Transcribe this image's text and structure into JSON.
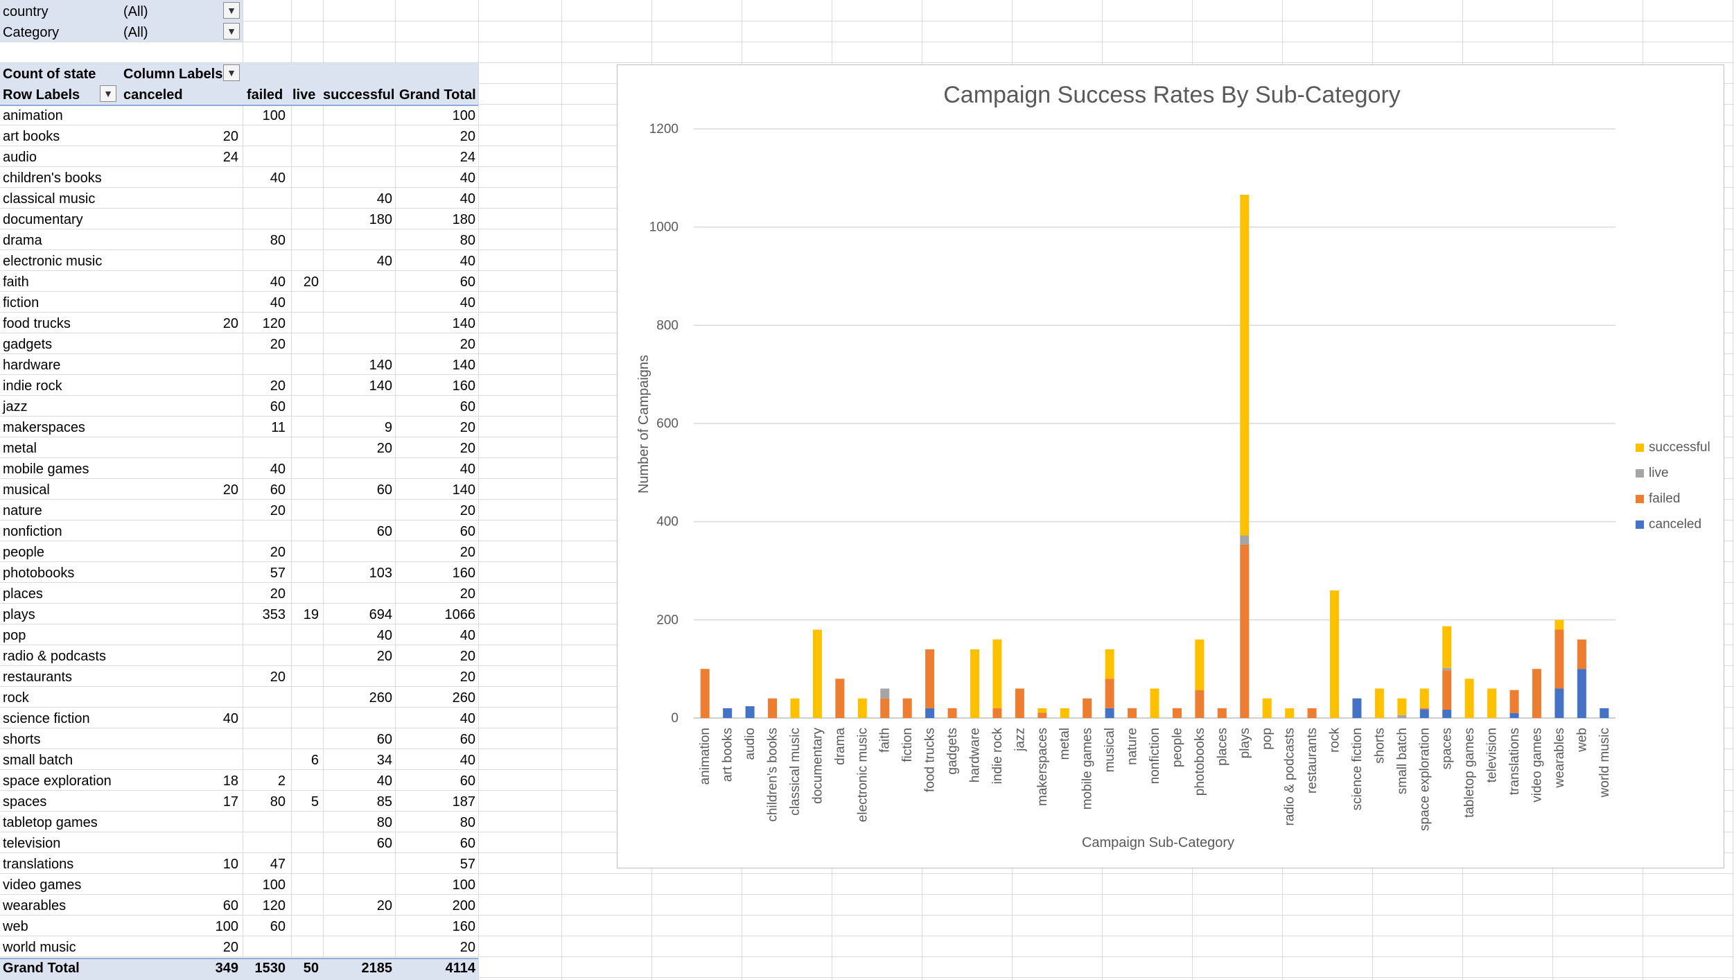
{
  "filters": [
    {
      "field": "country",
      "value": "(All)"
    },
    {
      "field": "Category",
      "value": "(All)"
    }
  ],
  "pivot": {
    "corner_label": "Count of state",
    "column_labels": "Column Labels",
    "row_labels": "Row Labels",
    "columns": [
      "canceled",
      "failed",
      "live",
      "successful",
      "Grand Total"
    ],
    "rows": [
      {
        "label": "animation",
        "canceled": "",
        "failed": "100",
        "live": "",
        "successful": "",
        "total": "100"
      },
      {
        "label": "art books",
        "canceled": "20",
        "failed": "",
        "live": "",
        "successful": "",
        "total": "20"
      },
      {
        "label": "audio",
        "canceled": "24",
        "failed": "",
        "live": "",
        "successful": "",
        "total": "24"
      },
      {
        "label": "children's books",
        "canceled": "",
        "failed": "40",
        "live": "",
        "successful": "",
        "total": "40"
      },
      {
        "label": "classical music",
        "canceled": "",
        "failed": "",
        "live": "",
        "successful": "40",
        "total": "40"
      },
      {
        "label": "documentary",
        "canceled": "",
        "failed": "",
        "live": "",
        "successful": "180",
        "total": "180"
      },
      {
        "label": "drama",
        "canceled": "",
        "failed": "80",
        "live": "",
        "successful": "",
        "total": "80"
      },
      {
        "label": "electronic music",
        "canceled": "",
        "failed": "",
        "live": "",
        "successful": "40",
        "total": "40"
      },
      {
        "label": "faith",
        "canceled": "",
        "failed": "40",
        "live": "20",
        "successful": "",
        "total": "60"
      },
      {
        "label": "fiction",
        "canceled": "",
        "failed": "40",
        "live": "",
        "successful": "",
        "total": "40"
      },
      {
        "label": "food trucks",
        "canceled": "20",
        "failed": "120",
        "live": "",
        "successful": "",
        "total": "140"
      },
      {
        "label": "gadgets",
        "canceled": "",
        "failed": "20",
        "live": "",
        "successful": "",
        "total": "20"
      },
      {
        "label": "hardware",
        "canceled": "",
        "failed": "",
        "live": "",
        "successful": "140",
        "total": "140"
      },
      {
        "label": "indie rock",
        "canceled": "",
        "failed": "20",
        "live": "",
        "successful": "140",
        "total": "160"
      },
      {
        "label": "jazz",
        "canceled": "",
        "failed": "60",
        "live": "",
        "successful": "",
        "total": "60"
      },
      {
        "label": "makerspaces",
        "canceled": "",
        "failed": "11",
        "live": "",
        "successful": "9",
        "total": "20"
      },
      {
        "label": "metal",
        "canceled": "",
        "failed": "",
        "live": "",
        "successful": "20",
        "total": "20"
      },
      {
        "label": "mobile games",
        "canceled": "",
        "failed": "40",
        "live": "",
        "successful": "",
        "total": "40"
      },
      {
        "label": "musical",
        "canceled": "20",
        "failed": "60",
        "live": "",
        "successful": "60",
        "total": "140"
      },
      {
        "label": "nature",
        "canceled": "",
        "failed": "20",
        "live": "",
        "successful": "",
        "total": "20"
      },
      {
        "label": "nonfiction",
        "canceled": "",
        "failed": "",
        "live": "",
        "successful": "60",
        "total": "60"
      },
      {
        "label": "people",
        "canceled": "",
        "failed": "20",
        "live": "",
        "successful": "",
        "total": "20"
      },
      {
        "label": "photobooks",
        "canceled": "",
        "failed": "57",
        "live": "",
        "successful": "103",
        "total": "160"
      },
      {
        "label": "places",
        "canceled": "",
        "failed": "20",
        "live": "",
        "successful": "",
        "total": "20"
      },
      {
        "label": "plays",
        "canceled": "",
        "failed": "353",
        "live": "19",
        "successful": "694",
        "total": "1066"
      },
      {
        "label": "pop",
        "canceled": "",
        "failed": "",
        "live": "",
        "successful": "40",
        "total": "40"
      },
      {
        "label": "radio & podcasts",
        "canceled": "",
        "failed": "",
        "live": "",
        "successful": "20",
        "total": "20"
      },
      {
        "label": "restaurants",
        "canceled": "",
        "failed": "20",
        "live": "",
        "successful": "",
        "total": "20"
      },
      {
        "label": "rock",
        "canceled": "",
        "failed": "",
        "live": "",
        "successful": "260",
        "total": "260"
      },
      {
        "label": "science fiction",
        "canceled": "40",
        "failed": "",
        "live": "",
        "successful": "",
        "total": "40"
      },
      {
        "label": "shorts",
        "canceled": "",
        "failed": "",
        "live": "",
        "successful": "60",
        "total": "60"
      },
      {
        "label": "small batch",
        "canceled": "",
        "failed": "",
        "live": "6",
        "successful": "34",
        "total": "40"
      },
      {
        "label": "space exploration",
        "canceled": "18",
        "failed": "2",
        "live": "",
        "successful": "40",
        "total": "60"
      },
      {
        "label": "spaces",
        "canceled": "17",
        "failed": "80",
        "live": "5",
        "successful": "85",
        "total": "187"
      },
      {
        "label": "tabletop games",
        "canceled": "",
        "failed": "",
        "live": "",
        "successful": "80",
        "total": "80"
      },
      {
        "label": "television",
        "canceled": "",
        "failed": "",
        "live": "",
        "successful": "60",
        "total": "60"
      },
      {
        "label": "translations",
        "canceled": "10",
        "failed": "47",
        "live": "",
        "successful": "",
        "total": "57"
      },
      {
        "label": "video games",
        "canceled": "",
        "failed": "100",
        "live": "",
        "successful": "",
        "total": "100"
      },
      {
        "label": "wearables",
        "canceled": "60",
        "failed": "120",
        "live": "",
        "successful": "20",
        "total": "200"
      },
      {
        "label": "web",
        "canceled": "100",
        "failed": "60",
        "live": "",
        "successful": "",
        "total": "160"
      },
      {
        "label": "world music",
        "canceled": "20",
        "failed": "",
        "live": "",
        "successful": "",
        "total": "20"
      }
    ],
    "grand_total": {
      "label": "Grand Total",
      "canceled": "349",
      "failed": "1530",
      "live": "50",
      "successful": "2185",
      "total": "4114"
    }
  },
  "chart_data": {
    "type": "bar",
    "stacked": true,
    "title": "Campaign Success Rates By Sub-Category",
    "xlabel": "Campaign Sub-Category",
    "ylabel": "Number of Campaigns",
    "ylim": [
      0,
      1200
    ],
    "yticks": [
      0,
      200,
      400,
      600,
      800,
      1000,
      1200
    ],
    "grid": true,
    "legend_position": "right",
    "categories": [
      "animation",
      "art books",
      "audio",
      "children's books",
      "classical music",
      "documentary",
      "drama",
      "electronic music",
      "faith",
      "fiction",
      "food trucks",
      "gadgets",
      "hardware",
      "indie rock",
      "jazz",
      "makerspaces",
      "metal",
      "mobile games",
      "musical",
      "nature",
      "nonfiction",
      "people",
      "photobooks",
      "places",
      "plays",
      "pop",
      "radio & podcasts",
      "restaurants",
      "rock",
      "science fiction",
      "shorts",
      "small batch",
      "space exploration",
      "spaces",
      "tabletop games",
      "television",
      "translations",
      "video games",
      "wearables",
      "web",
      "world music"
    ],
    "series": [
      {
        "name": "canceled",
        "color": "#4472c4",
        "values": [
          0,
          20,
          24,
          0,
          0,
          0,
          0,
          0,
          0,
          0,
          20,
          0,
          0,
          0,
          0,
          0,
          0,
          0,
          20,
          0,
          0,
          0,
          0,
          0,
          0,
          0,
          0,
          0,
          0,
          40,
          0,
          0,
          18,
          17,
          0,
          0,
          10,
          0,
          60,
          100,
          20
        ]
      },
      {
        "name": "failed",
        "color": "#ed7d31",
        "values": [
          100,
          0,
          0,
          40,
          0,
          0,
          80,
          0,
          40,
          40,
          120,
          20,
          0,
          20,
          60,
          11,
          0,
          40,
          60,
          20,
          0,
          20,
          57,
          20,
          353,
          0,
          0,
          20,
          0,
          0,
          0,
          0,
          2,
          80,
          0,
          0,
          47,
          100,
          120,
          60,
          0
        ]
      },
      {
        "name": "live",
        "color": "#a5a5a5",
        "values": [
          0,
          0,
          0,
          0,
          0,
          0,
          0,
          0,
          20,
          0,
          0,
          0,
          0,
          0,
          0,
          0,
          0,
          0,
          0,
          0,
          0,
          0,
          0,
          0,
          19,
          0,
          0,
          0,
          0,
          0,
          0,
          6,
          0,
          5,
          0,
          0,
          0,
          0,
          0,
          0,
          0
        ]
      },
      {
        "name": "successful",
        "color": "#ffc000",
        "values": [
          0,
          0,
          0,
          0,
          40,
          180,
          0,
          40,
          0,
          0,
          0,
          0,
          140,
          140,
          0,
          9,
          20,
          0,
          60,
          0,
          60,
          0,
          103,
          0,
          694,
          40,
          20,
          0,
          260,
          0,
          60,
          34,
          40,
          85,
          80,
          60,
          0,
          0,
          20,
          0,
          0
        ]
      }
    ],
    "legend_order": [
      "successful",
      "live",
      "failed",
      "canceled"
    ]
  }
}
